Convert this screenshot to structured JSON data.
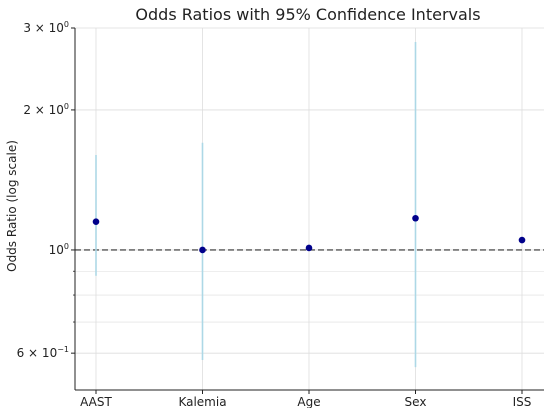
{
  "chart_data": {
    "type": "scatter",
    "title": "Odds Ratios with 95% Confidence Intervals",
    "xlabel": "",
    "ylabel": "Odds Ratio (log scale)",
    "yscale": "log",
    "ylim": [
      0.5,
      3.0
    ],
    "grid": true,
    "categories": [
      "AAST",
      "Kalemia",
      "Age",
      "Sex",
      "ISS"
    ],
    "series": [
      {
        "values": [
          1.15,
          1.0,
          1.01,
          1.17,
          1.05
        ],
        "lower": [
          0.88,
          0.58,
          1.01,
          0.56,
          1.05
        ],
        "upper": [
          1.6,
          1.7,
          1.01,
          2.8,
          1.05
        ]
      }
    ],
    "reference_line": {
      "y": 1.0,
      "style": "dashed"
    },
    "ytick_labels": [
      {
        "value": 3.0,
        "base": "3 × 10",
        "exp": "0"
      },
      {
        "value": 2.0,
        "base": "2 × 10",
        "exp": "0"
      },
      {
        "value": 1.0,
        "base": "10",
        "exp": "0"
      },
      {
        "value": 0.6,
        "base": "6 × 10",
        "exp": "−1"
      }
    ],
    "minor_gridlines": [
      0.7,
      0.8,
      0.9
    ],
    "colors": {
      "point": "#00008b",
      "errorbar": "#add8e6",
      "refline": "#555555",
      "grid": "#dddddd",
      "axis": "#222222"
    }
  }
}
